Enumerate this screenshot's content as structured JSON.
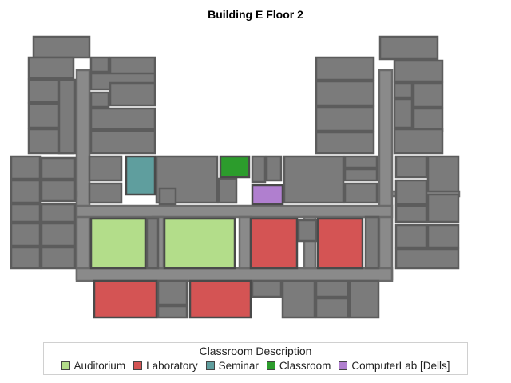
{
  "title": "Building E Floor 2",
  "legend": {
    "title": "Classroom Description",
    "items": [
      {
        "label": "Auditorium",
        "color": "#b3dd8a"
      },
      {
        "label": "Laboratory",
        "color": "#d45454"
      },
      {
        "label": "Seminar",
        "color": "#5f9e9e"
      },
      {
        "label": "Classroom",
        "color": "#2c9c2c"
      },
      {
        "label": "ComputerLab  [Dells]",
        "color": "#b07fcf"
      }
    ]
  },
  "colors": {
    "room": "#7b7b7b",
    "room_border": "#5c5c5c",
    "corridor": "#8a8a8a"
  }
}
